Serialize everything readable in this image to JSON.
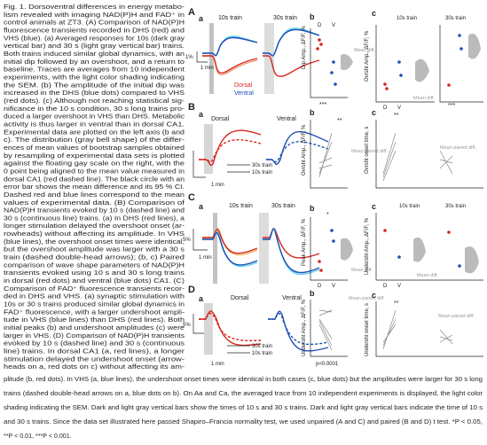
{
  "caption": {
    "lines": [
      "Fig. 1.  Dorsoventral differences in energy metabo-",
      "lism revealed with imaging NAD(P)H and FAD⁺ in",
      "control animals at ZT3. (A) Comparison of NAD(P)H",
      "fluorescence transients recorded in DHS (red) and",
      "VHS (blue). (a) Averaged responses for 10s (dark gray",
      "vertical bar) and 30 s (light gray vertical bar) trains.",
      "Both trains induced similar global dynamics, with an",
      "initial dip followed by an overshoot, and a return to",
      "baseline. Traces are averages from 10 independent",
      "experiments, with the light color shading indicating",
      "the SEM. (b) The amplitude of the initial dip was",
      "increased in the DHS (blue dots) compared to VHS",
      "(red dots). (c) Although not reaching statistical sig-",
      "nificance in the 10 s condition, 30 s long trains pro-",
      "duced a larger overshoot in VHS than DHS. Metabolic",
      "activity is thus larger in ventral than in dorsal CA1.",
      "Experimental data are plotted on the left axis (b and",
      "c). The distribution (gray bell shape) of the differ-",
      "ences of mean values of bootstrap samples obtained",
      "by resampling of experimental data sets is plotted",
      "against the floating gay scale on the right, with the",
      "0 point being aligned to the mean value measured in",
      "dorsal CA1 (red dashed line). The black circle with an",
      "error bar shows the mean difference and its 95 % CI.",
      "Dashed red and blue lines correspond to the mean",
      "values of experimental data. (B) Comparison of",
      "NAD(P)H transients evoked by 10 s (dashed line) and",
      "30 s (continuous line) trains. (a) In DHS (red lines), a",
      "longer stimulation delayed the overshoot onset (ar-",
      "rowheads) without affecting its amplitude. In VHS",
      "(blue lines), the overshoot onset times were identical,",
      "but the overshoot amplitude was larger with a 30 s",
      "train (dashed double-head arrows); (b, c) Paired",
      "comparison of wave shape parameters of NAD(P)H",
      "transients evoked using 10 s and 30 s long trains",
      "in dorsal (red dots) and ventral (blue dots) CA1. (C)",
      "Comparison of FAD⁺ fluorescence transients recor-",
      "ded in DHS and VHS. (a) synaptic stimulation with",
      "10s or 30 s trains produced similar global dynamics in",
      "FAD⁺ fluorescence, with a larger undershoot ampli-",
      "tude in VHS (blue lines) than DHS (red lines). Both",
      "initial peaks (b) and undershoot amplitudes (c) were",
      "larger in VHS. (D) Comparison of NAD(P)H transients",
      "evoked by 10 s (dashed line) and 30 s (continuous",
      "line) trains. In dorsal CA1 (a, red lines), a longer",
      "stimulation delayed the undershoot onset (arrow-",
      "heads on a, red dots on c) without affecting its am-"
    ],
    "full_lines": [
      "plitude (b, red dots). In VHS (a, blue lines), the undershoot onset times were identical in both cases (c, blue dots) but the amplitudes were larger for 30 s long",
      "trains (dashed double-head arrows on a, blue dots on b). On Aa and Ca, the averaged trace from 10 independent experiments is displayed, the light color",
      "shading indicating the SEM. Dark and light gray vertical bars show the times of 10 s and 30 s trains. Dark and light gray vertical bars indicate the time of 10 s",
      "and 30 s trains. Since the data set illustrated here passed Shapiro–Francia normality test, we used unpaired (A and C) and paired (B and D) t test. *P < 0.05,",
      "**P < 0.01, ***P < 0.001."
    ]
  },
  "figure": {
    "A": {
      "label": "A",
      "sub_a": "a",
      "train_10": "10s train",
      "train_30": "30s train",
      "scale_y": "1%",
      "scale_x": "1 min",
      "dorsal": "Dorsal",
      "ventral": "Ventral",
      "sub_b": "b",
      "b_ylabel": "Dip Amp., ΔF/F, %",
      "b_cats": [
        "D",
        "V"
      ],
      "b_diff": "Mean diff.",
      "b_sig": "***",
      "sub_c": "c",
      "c_train_10": "10s train",
      "c_train_30": "30s train",
      "c_ylabel": "Ovrsht Amp., ΔF/F, %",
      "c_cats": [
        "D",
        "V"
      ],
      "c_diff": "Mean diff.",
      "c_sig": "***"
    },
    "B": {
      "label": "B",
      "sub_a": "a",
      "dorsal": "Dorsal",
      "ventral": "Ventral",
      "train_30": "30s train",
      "train_10": "10s train",
      "scale_x": "1 min",
      "sub_b": "b",
      "b_ylabel": "Ovrsht Amp., ΔF/F, %",
      "b_sig": "**",
      "b_diff": "Mean paired diff.",
      "sub_c": "c",
      "c_ylabel": "Ovrsht onset time, s",
      "c_sig": "**",
      "c_diff": "Mean paired diff."
    },
    "C": {
      "label": "C",
      "sub_a": "a",
      "train_10": "10s train",
      "train_30": "30s train",
      "scale_y": "5%",
      "scale_x": "1 min",
      "sub_b": "b",
      "b_ylabel": "Peak Amp., ΔF/F, %",
      "b_sig": "*",
      "b_cats": [
        "D",
        "V"
      ],
      "b_diff": "Mean diff.",
      "sub_c": "c",
      "c_train_10": "10s train",
      "c_train_30": "30s train",
      "c_ylabel": "Undersht Amp., ΔF/F, %",
      "c_cats": [
        "D",
        "V"
      ],
      "c_diff": "Mean diff."
    },
    "D": {
      "label": "D",
      "sub_a": "a",
      "dorsal": "Dorsal",
      "ventral": "Ventral",
      "scale_y": "5%",
      "train_30": "30s train",
      "train_10": "10s train",
      "scale_x": "1 min",
      "sub_b": "b",
      "b_ylabel": "Undersht Amp., ΔF/F, %",
      "b_p": "p<0.0001",
      "b_diff": "Mean paired diff.",
      "sub_c": "c",
      "c_ylabel": "Undersht onset time, s",
      "c_sig": "**",
      "c_diff": "Mean paired diff."
    }
  }
}
